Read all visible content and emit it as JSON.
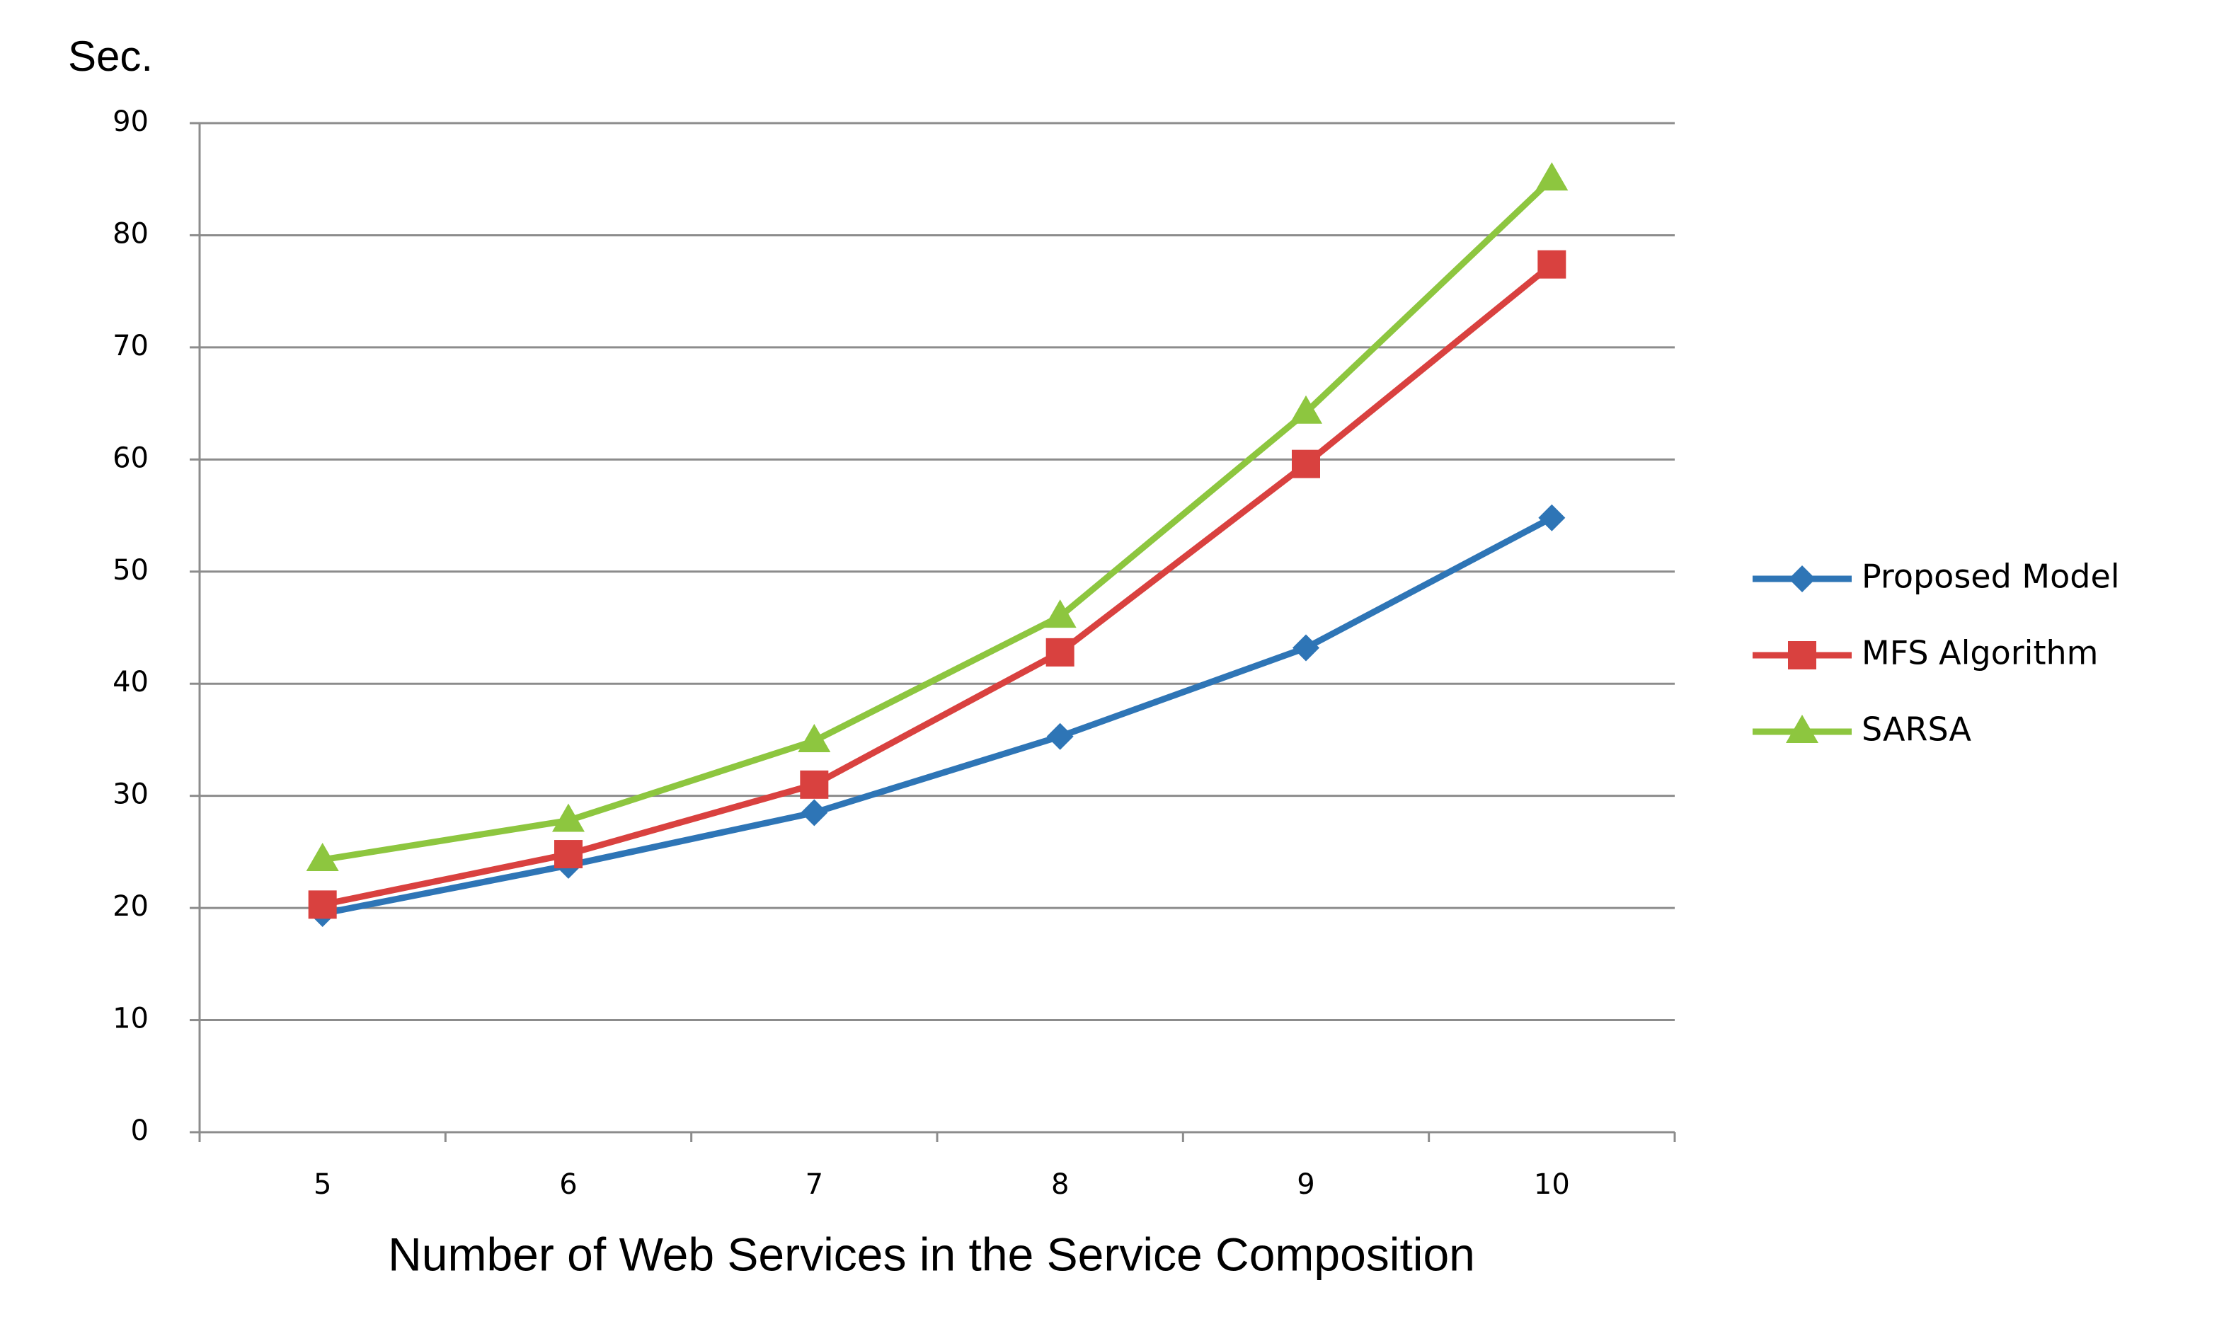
{
  "chart_data": {
    "type": "line",
    "y_label": "Sec.",
    "x_label": "Number of Web Services in the Service Composition",
    "categories": [
      "5",
      "6",
      "7",
      "8",
      "9",
      "10"
    ],
    "series": [
      {
        "name": "Proposed Model",
        "color": "#2e75b6",
        "marker": "diamond",
        "values": [
          19.5,
          23.8,
          28.5,
          35.3,
          43.2,
          54.8
        ]
      },
      {
        "name": "MFS Algorithm",
        "color": "#d9413f",
        "marker": "square",
        "values": [
          20.3,
          24.8,
          31.0,
          42.8,
          59.6,
          77.4
        ]
      },
      {
        "name": "SARSA",
        "color": "#8dc63f",
        "marker": "triangle",
        "values": [
          24.3,
          27.8,
          34.9,
          46.0,
          64.2,
          85.0
        ]
      }
    ],
    "ylim": [
      0,
      90
    ],
    "yticks": [
      0,
      10,
      20,
      30,
      40,
      50,
      60,
      70,
      80,
      90
    ],
    "grid": true,
    "legend": "right"
  }
}
